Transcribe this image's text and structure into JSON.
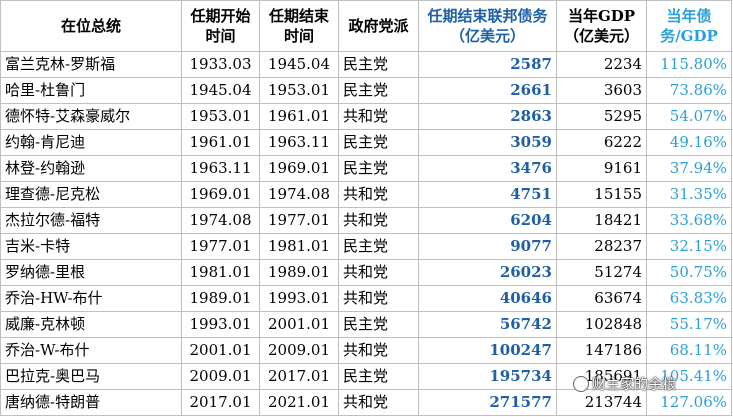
{
  "headers": [
    "在位总统",
    "任期开始时间",
    "任期结束时间",
    "政府党派",
    "任期结束联邦债务（亿美元）",
    "当年GDP（亿美元）",
    "当年债务/GDP"
  ],
  "rows": [
    {
      "name": "富兰克林-罗斯福",
      "start": "1933.03",
      "end": "1945.04",
      "party": "民主党",
      "debt": "2587",
      "gdp": "2234",
      "ratio": "115.80%"
    },
    {
      "name": "哈里-杜鲁门",
      "start": "1945.04",
      "end": "1953.01",
      "party": "民主党",
      "debt": "2661",
      "gdp": "3603",
      "ratio": "73.86%"
    },
    {
      "name": "德怀特-艾森豪威尔",
      "start": "1953.01",
      "end": "1961.01",
      "party": "共和党",
      "debt": "2863",
      "gdp": "5295",
      "ratio": "54.07%"
    },
    {
      "name": "约翰-肯尼迪",
      "start": "1961.01",
      "end": "1963.11",
      "party": "民主党",
      "debt": "3059",
      "gdp": "6222",
      "ratio": "49.16%"
    },
    {
      "name": "林登-约翰逊",
      "start": "1963.11",
      "end": "1969.01",
      "party": "民主党",
      "debt": "3476",
      "gdp": "9161",
      "ratio": "37.94%"
    },
    {
      "name": "理查德-尼克松",
      "start": "1969.01",
      "end": "1974.08",
      "party": "共和党",
      "debt": "4751",
      "gdp": "15155",
      "ratio": "31.35%"
    },
    {
      "name": "杰拉尔德-福特",
      "start": "1974.08",
      "end": "1977.01",
      "party": "共和党",
      "debt": "6204",
      "gdp": "18421",
      "ratio": "33.68%"
    },
    {
      "name": "吉米-卡特",
      "start": "1977.01",
      "end": "1981.01",
      "party": "民主党",
      "debt": "9077",
      "gdp": "28237",
      "ratio": "32.15%"
    },
    {
      "name": "罗纳德-里根",
      "start": "1981.01",
      "end": "1989.01",
      "party": "共和党",
      "debt": "26023",
      "gdp": "51274",
      "ratio": "50.75%"
    },
    {
      "name": "乔治-HW-布什",
      "start": "1989.01",
      "end": "1993.01",
      "party": "共和党",
      "debt": "40646",
      "gdp": "63674",
      "ratio": "63.83%"
    },
    {
      "name": "威廉-克林顿",
      "start": "1993.01",
      "end": "2001.01",
      "party": "民主党",
      "debt": "56742",
      "gdp": "102848",
      "ratio": "55.17%"
    },
    {
      "name": "乔治-W-布什",
      "start": "2001.01",
      "end": "2009.01",
      "party": "共和党",
      "debt": "100247",
      "gdp": "147186",
      "ratio": "68.11%"
    },
    {
      "name": "巴拉克-奥巴马",
      "start": "2009.01",
      "end": "2017.01",
      "party": "民主党",
      "debt": "195734",
      "gdp": "185691",
      "ratio": "105.41%"
    },
    {
      "name": "唐纳德-特朗普",
      "start": "2017.01",
      "end": "2021.01",
      "party": "共和党",
      "debt": "271577",
      "gdp": "213744",
      "ratio": "127.06%"
    }
  ],
  "watermark": "财主家的余粮",
  "colors": {
    "debt_header": "#1f5fa6",
    "ratio_header": "#2aa0d8",
    "grid": "#bfbfbf"
  }
}
